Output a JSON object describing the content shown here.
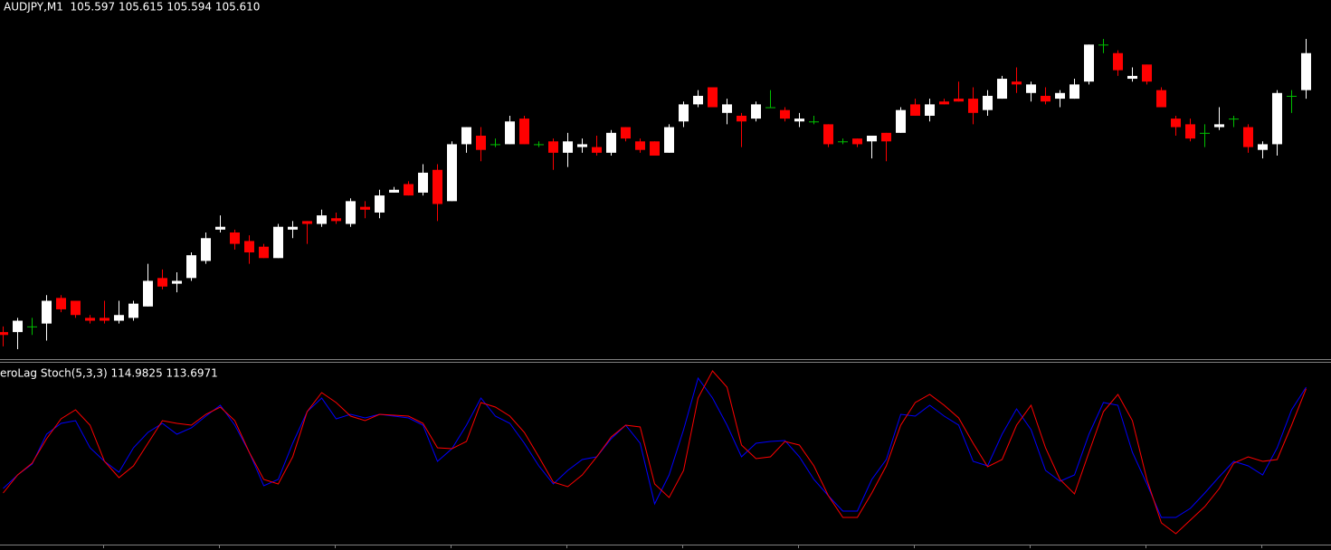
{
  "chart_data": [
    {
      "type": "candlestick",
      "title": "AUDJPY,M1  105.597 105.615 105.594 105.610",
      "up_color": "#ffffff",
      "down_color": "#ff0000",
      "doji_color": "#00c000",
      "open": [
        105.512,
        105.512,
        105.514,
        105.515,
        105.524,
        105.523,
        105.517,
        105.517,
        105.516,
        105.517,
        105.521,
        105.531,
        105.529,
        105.531,
        105.537,
        105.548,
        105.547,
        105.544,
        105.542,
        105.538,
        105.548,
        105.551,
        105.55,
        105.552,
        105.55,
        105.556,
        105.554,
        105.561,
        105.564,
        105.561,
        105.569,
        105.558,
        105.578,
        105.581,
        105.578,
        105.578,
        105.587,
        105.578,
        105.579,
        105.575,
        105.577,
        105.577,
        105.575,
        105.584,
        105.579,
        105.579,
        105.575,
        105.586,
        105.592,
        105.598,
        105.589,
        105.588,
        105.587,
        105.591,
        105.59,
        105.586,
        105.586,
        105.585,
        105.579,
        105.58,
        105.579,
        105.582,
        105.582,
        105.592,
        105.588,
        105.593,
        105.594,
        105.594,
        105.59,
        105.594,
        105.6,
        105.596,
        105.595,
        105.594,
        105.594,
        105.6,
        105.613,
        105.61,
        105.601,
        105.606,
        105.597,
        105.587,
        105.585,
        105.582,
        105.584,
        105.587,
        105.584,
        105.576,
        105.578,
        105.595,
        105.597
      ],
      "high": [
        105.514,
        105.517,
        105.517,
        105.525,
        105.525,
        105.523,
        105.518,
        105.523,
        105.523,
        105.523,
        105.536,
        105.534,
        105.533,
        105.54,
        105.547,
        105.553,
        105.548,
        105.546,
        105.543,
        105.55,
        105.551,
        105.551,
        105.555,
        105.554,
        105.559,
        105.558,
        105.562,
        105.563,
        105.565,
        105.571,
        105.571,
        105.579,
        105.584,
        105.584,
        105.58,
        105.588,
        105.588,
        105.579,
        105.58,
        105.582,
        105.58,
        105.581,
        105.583,
        105.584,
        105.58,
        105.579,
        105.585,
        105.593,
        105.597,
        105.598,
        105.594,
        105.589,
        105.593,
        105.597,
        105.591,
        105.589,
        105.588,
        105.585,
        105.58,
        105.58,
        105.581,
        105.582,
        105.591,
        105.594,
        105.594,
        105.594,
        105.6,
        105.598,
        105.597,
        105.602,
        105.605,
        105.6,
        105.598,
        105.597,
        105.601,
        105.613,
        105.615,
        105.611,
        105.605,
        105.606,
        105.598,
        105.588,
        105.587,
        105.585,
        105.591,
        105.588,
        105.585,
        105.579,
        105.597,
        105.597,
        105.615
      ],
      "low": [
        105.507,
        105.506,
        105.511,
        105.509,
        105.519,
        105.517,
        105.515,
        105.515,
        105.515,
        105.516,
        105.521,
        105.527,
        105.526,
        105.53,
        105.536,
        105.547,
        105.541,
        105.536,
        105.538,
        105.538,
        105.545,
        105.543,
        105.549,
        105.55,
        105.549,
        105.552,
        105.552,
        105.561,
        105.56,
        105.56,
        105.551,
        105.558,
        105.575,
        105.572,
        105.577,
        105.578,
        105.578,
        105.577,
        105.569,
        105.57,
        105.575,
        105.574,
        105.574,
        105.579,
        105.575,
        105.574,
        105.575,
        105.584,
        105.591,
        105.591,
        105.585,
        105.577,
        105.586,
        105.591,
        105.586,
        105.584,
        105.585,
        105.577,
        105.578,
        105.577,
        105.573,
        105.572,
        105.582,
        105.588,
        105.586,
        105.592,
        105.593,
        105.585,
        105.588,
        105.594,
        105.596,
        105.593,
        105.592,
        105.591,
        105.594,
        105.599,
        105.61,
        105.602,
        105.6,
        105.599,
        105.591,
        105.581,
        105.579,
        105.577,
        105.583,
        105.584,
        105.575,
        105.573,
        105.574,
        105.589,
        105.594
      ],
      "close": [
        105.511,
        105.516,
        105.514,
        105.523,
        105.52,
        105.518,
        105.516,
        105.516,
        105.518,
        105.522,
        105.53,
        105.528,
        105.53,
        105.539,
        105.545,
        105.549,
        105.543,
        105.54,
        105.538,
        105.549,
        105.549,
        105.55,
        105.553,
        105.551,
        105.558,
        105.555,
        105.56,
        105.562,
        105.56,
        105.568,
        105.557,
        105.578,
        105.584,
        105.576,
        105.578,
        105.586,
        105.578,
        105.578,
        105.575,
        105.579,
        105.578,
        105.575,
        105.582,
        105.58,
        105.576,
        105.574,
        105.584,
        105.592,
        105.595,
        105.591,
        105.592,
        105.586,
        105.592,
        105.591,
        105.587,
        105.587,
        105.586,
        105.578,
        105.579,
        105.578,
        105.581,
        105.579,
        105.59,
        105.588,
        105.592,
        105.592,
        105.593,
        105.589,
        105.595,
        105.601,
        105.599,
        105.599,
        105.593,
        105.596,
        105.599,
        105.613,
        105.613,
        105.604,
        105.602,
        105.6,
        105.591,
        105.584,
        105.58,
        105.582,
        105.585,
        105.587,
        105.577,
        105.578,
        105.596,
        105.595,
        105.61
      ]
    },
    {
      "type": "line",
      "title": "eroLag Stoch(5,3,3) 114.9825 113.6971",
      "series": [
        {
          "color": "#0000ff",
          "values": [
            25.4,
            37.4,
            47.0,
            73.4,
            83.0,
            85.4,
            61.4,
            49.4,
            39.8,
            61.4,
            75.0,
            83.0,
            73.4,
            79.0,
            89.4,
            99.0,
            81.4,
            57.4,
            27.8,
            33.4,
            65.4,
            93.4,
            105.4,
            87.0,
            91.0,
            87.8,
            91.0,
            89.4,
            87.8,
            81.4,
            49.4,
            60.6,
            81.4,
            105.4,
            89.4,
            83.0,
            65.4,
            45.4,
            29.4,
            41.4,
            51.0,
            53.4,
            69.4,
            81.4,
            65.4,
            11.8,
            37.4,
            77.4,
            123.0,
            105.4,
            81.4,
            53.4,
            65.4,
            67.0,
            67.8,
            53.4,
            33.4,
            19.0,
            5.4,
            5.4,
            33.4,
            51.0,
            91.0,
            89.4,
            99.0,
            89.4,
            81.4,
            49.4,
            45.4,
            73.4,
            95.8,
            77.4,
            41.4,
            31.8,
            37.4,
            73.4,
            101.4,
            99.0,
            57.4,
            29.4,
            -0.2,
            -0.2,
            7.8,
            21.4,
            35.8,
            49.4,
            45.4,
            37.4,
            61.4,
            95.0,
            114.9825
          ]
        },
        {
          "color": "#ff0000",
          "values": [
            21.4,
            37.4,
            47.8,
            69.4,
            87.0,
            95.0,
            81.4,
            49.4,
            35.0,
            45.4,
            65.4,
            85.4,
            83.0,
            81.4,
            91.0,
            97.4,
            85.4,
            57.4,
            33.4,
            29.4,
            53.4,
            93.4,
            110.2,
            101.4,
            89.4,
            85.4,
            91.0,
            90.2,
            89.4,
            83.0,
            61.4,
            60.6,
            67.0,
            101.4,
            97.4,
            89.4,
            75.0,
            53.4,
            31.0,
            27.0,
            37.4,
            53.4,
            71.0,
            81.4,
            79.8,
            29.4,
            17.4,
            41.4,
            105.4,
            129.4,
            115.0,
            63.8,
            51.8,
            53.4,
            67.0,
            63.8,
            45.4,
            19.0,
            -0.2,
            -0.2,
            21.4,
            45.4,
            81.4,
            101.4,
            108.6,
            99.0,
            87.8,
            65.4,
            44.6,
            51.0,
            81.4,
            99.0,
            61.4,
            33.4,
            20.6,
            57.4,
            93.4,
            108.6,
            85.4,
            33.4,
            -5.0,
            -14.6,
            -2.6,
            9.4,
            25.4,
            47.8,
            53.4,
            49.4,
            51.0,
            81.4,
            113.6971
          ]
        }
      ]
    }
  ]
}
